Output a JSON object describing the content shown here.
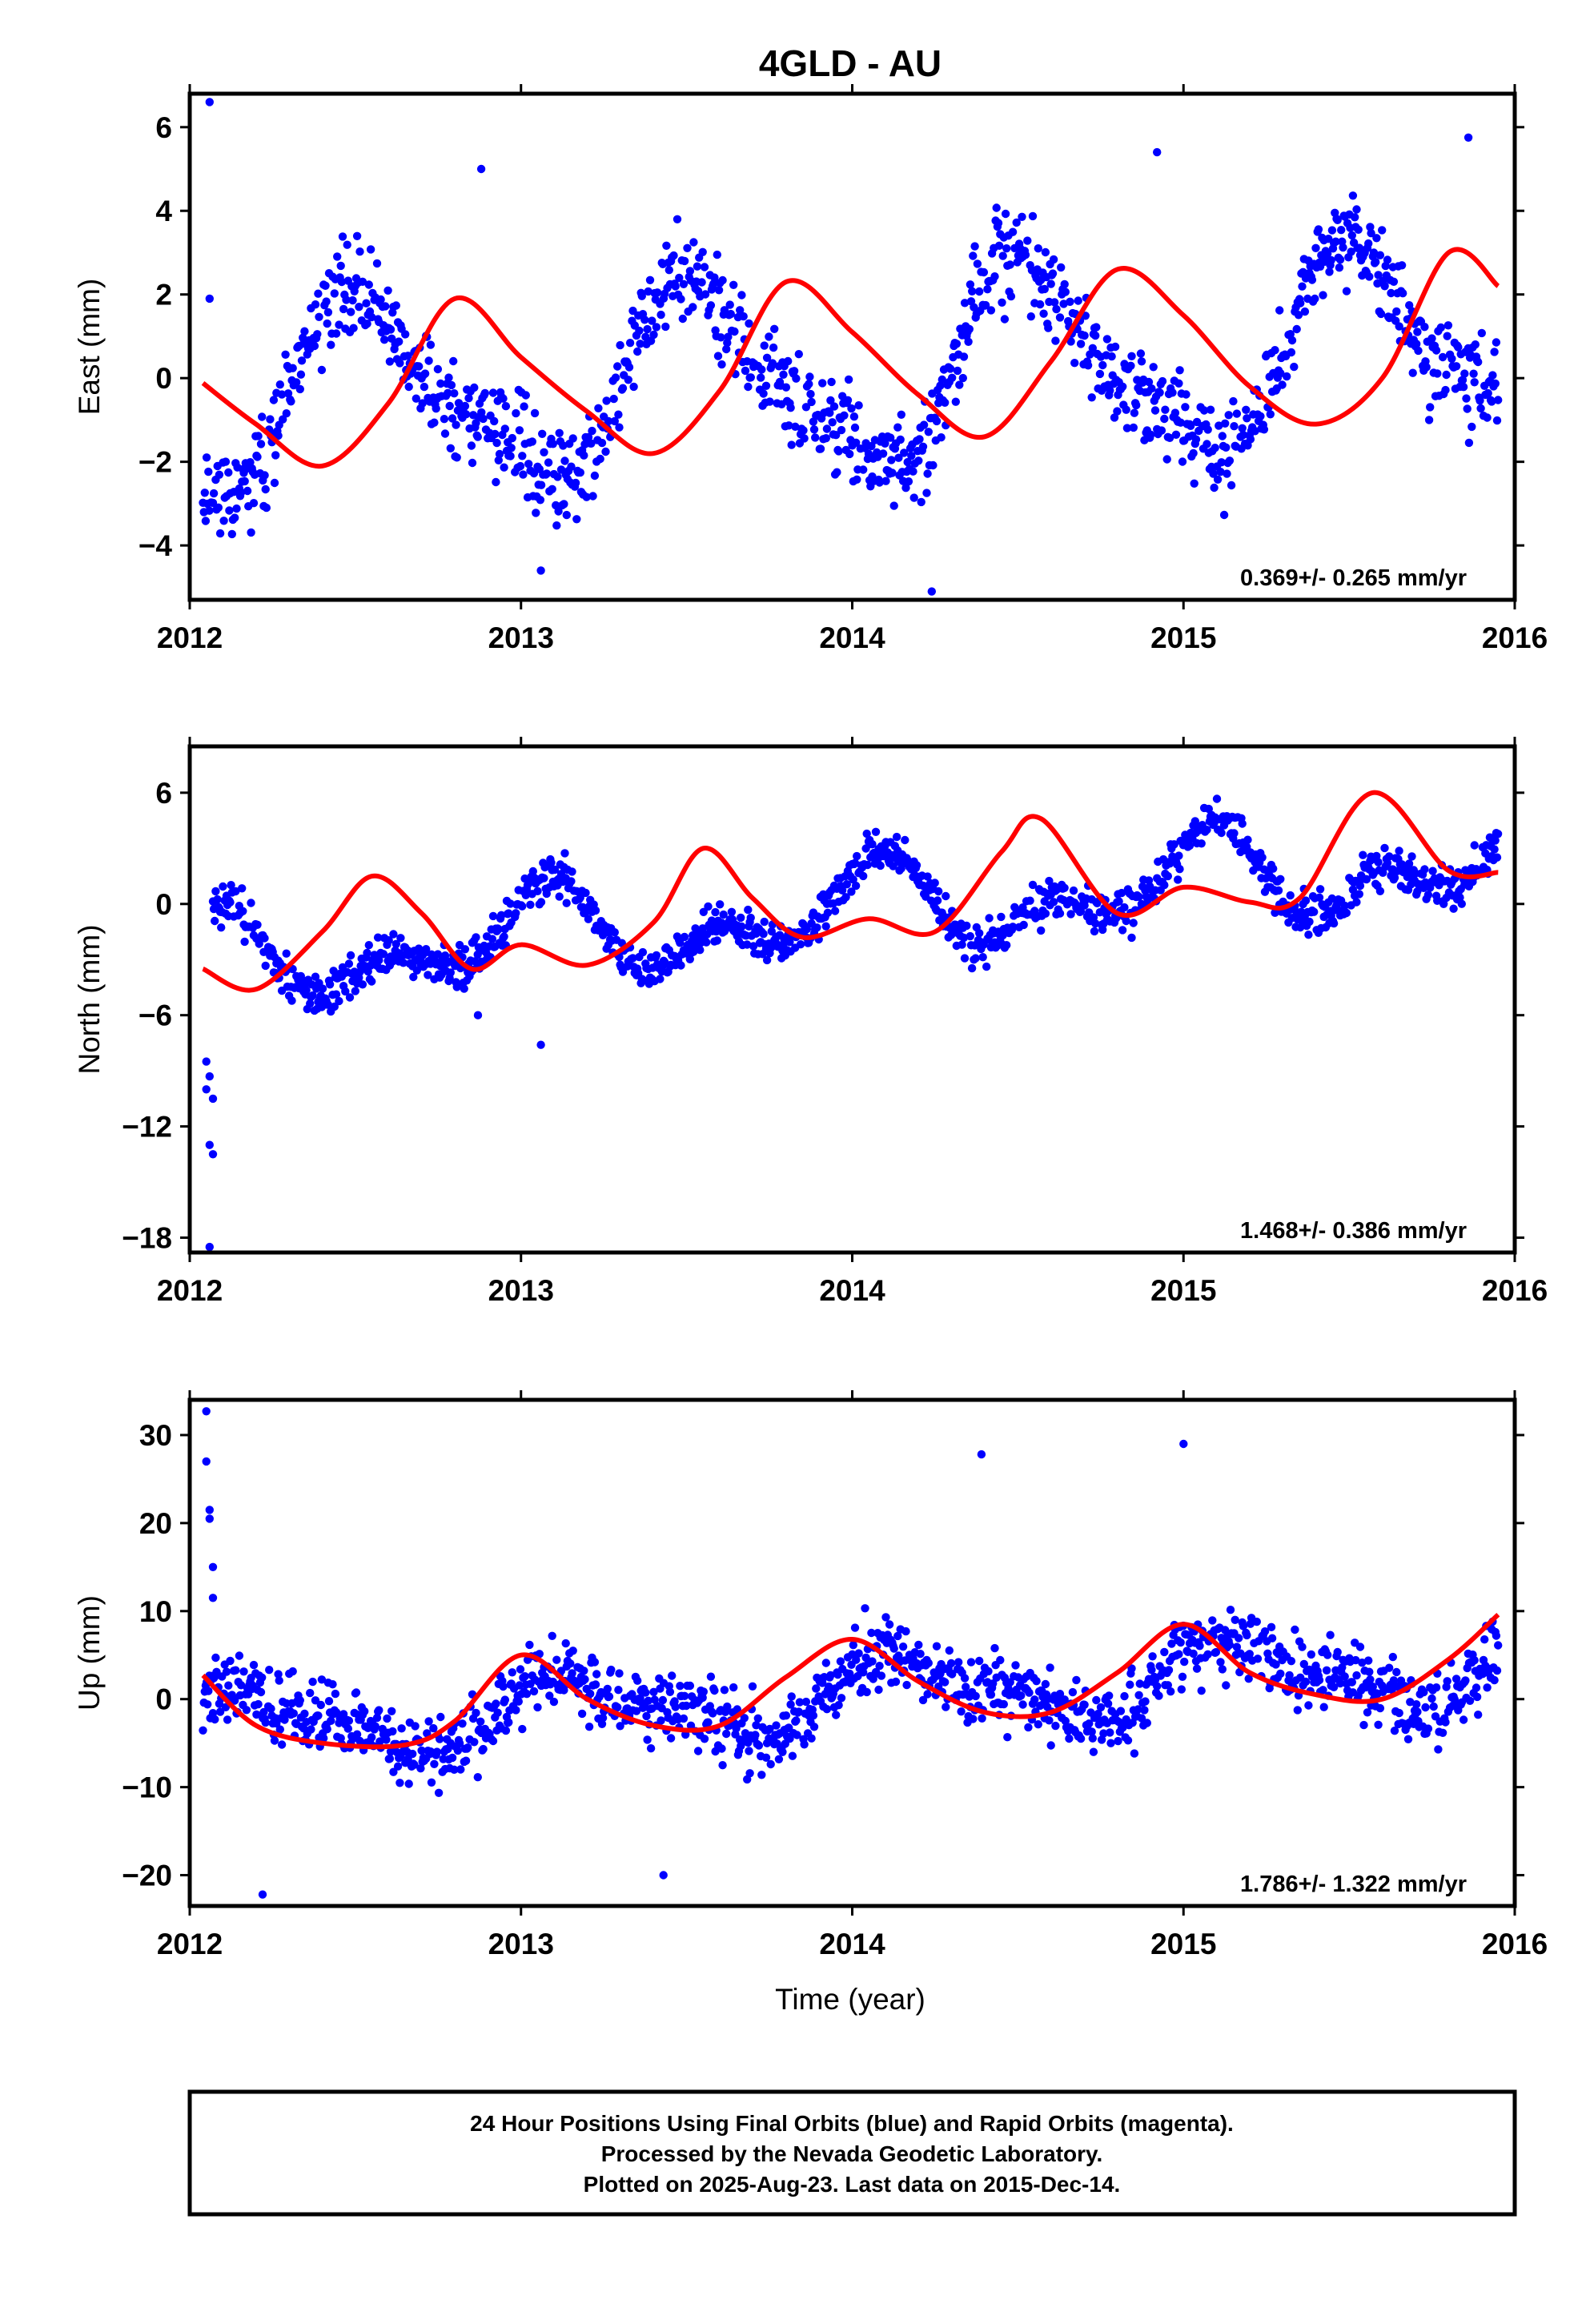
{
  "title": "4GLD - AU",
  "xlabel": "Time (year)",
  "footer": {
    "line1": "24 Hour Positions Using Final Orbits (blue) and Rapid Orbits (magenta).",
    "line2": "Processed by the Nevada Geodetic Laboratory.",
    "line3": "Plotted on 2025-Aug-23. Last data on 2015-Dec-14."
  },
  "colors": {
    "points": "#0000ff",
    "fit": "#ff0000",
    "frame": "#000000"
  },
  "chart_data": [
    {
      "type": "scatter",
      "component": "east",
      "ylabel": "East (mm)",
      "rate_text": "0.369+/- 0.265 mm/yr",
      "xlim": [
        2012.0,
        2016.0
      ],
      "ylim": [
        -5.3,
        6.8
      ],
      "xticks": [
        2012,
        2013,
        2014,
        2015,
        2016
      ],
      "xtick_labels": [
        "2012",
        "2013",
        "2014",
        "2015",
        "2016"
      ],
      "yticks": [
        -4,
        -2,
        0,
        2,
        4,
        6
      ],
      "ytick_labels": [
        "−4",
        "−2",
        "0",
        "2",
        "4",
        "6"
      ],
      "data_range": [
        2012.04,
        2015.95
      ],
      "model": {
        "amp1": 2.15,
        "phase1": 4.5,
        "amp2": 0.7,
        "phase2": 2.2,
        "trend": 0.369,
        "ref_year": 2014.0,
        "offset": 0.1
      },
      "scatter_sd": 1.0,
      "seed": 11,
      "outliers": [
        [
          2012.06,
          6.6
        ],
        [
          2012.06,
          1.9
        ],
        [
          2012.88,
          5.0
        ],
        [
          2013.06,
          -4.6
        ],
        [
          2014.24,
          -5.1
        ],
        [
          2014.92,
          5.4
        ],
        [
          2015.86,
          5.75
        ]
      ],
      "fit": [
        [
          2012.04,
          -0.12
        ],
        [
          2012.2,
          -1.1
        ],
        [
          2012.4,
          -2.1
        ],
        [
          2012.6,
          -0.6
        ],
        [
          2012.8,
          1.9
        ],
        [
          2013.0,
          0.5
        ],
        [
          2013.2,
          -0.8
        ],
        [
          2013.4,
          -1.8
        ],
        [
          2013.6,
          -0.3
        ],
        [
          2013.8,
          2.3
        ],
        [
          2014.0,
          1.1
        ],
        [
          2014.2,
          -0.4
        ],
        [
          2014.4,
          -1.4
        ],
        [
          2014.6,
          0.4
        ],
        [
          2014.8,
          2.6
        ],
        [
          2015.0,
          1.5
        ],
        [
          2015.2,
          -0.2
        ],
        [
          2015.4,
          -1.1
        ],
        [
          2015.6,
          0.0
        ],
        [
          2015.8,
          3.0
        ],
        [
          2015.95,
          2.2
        ]
      ]
    },
    {
      "type": "scatter",
      "component": "north",
      "ylabel": "North (mm)",
      "rate_text": "1.468+/- 0.386 mm/yr",
      "xlim": [
        2012.0,
        2016.0
      ],
      "ylim": [
        -18.8,
        8.5
      ],
      "xticks": [
        2012,
        2013,
        2014,
        2015,
        2016
      ],
      "xtick_labels": [
        "2012",
        "2013",
        "2014",
        "2015",
        "2016"
      ],
      "yticks": [
        -18,
        -12,
        -6,
        0,
        6
      ],
      "ytick_labels": [
        "−18",
        "−12",
        "−6",
        "0",
        "6"
      ],
      "data_range": [
        2012.07,
        2015.95
      ],
      "model": {
        "amp1": 1.8,
        "phase1": 1.2,
        "amp2": 1.5,
        "phase2": 0.3,
        "trend": 1.468,
        "ref_year": 2014.0,
        "offset": -0.4
      },
      "scatter_sd": 1.0,
      "seed": 23,
      "outliers": [
        [
          2012.05,
          -8.5
        ],
        [
          2012.06,
          -9.3
        ],
        [
          2012.05,
          -10.0
        ],
        [
          2012.07,
          -10.5
        ],
        [
          2012.06,
          -13.0
        ],
        [
          2012.07,
          -13.5
        ],
        [
          2012.06,
          -18.5
        ],
        [
          2012.87,
          -6.0
        ],
        [
          2013.06,
          -7.6
        ]
      ],
      "fit": [
        [
          2012.04,
          -3.5
        ],
        [
          2012.2,
          -4.6
        ],
        [
          2012.4,
          -1.5
        ],
        [
          2012.55,
          1.5
        ],
        [
          2012.7,
          -0.5
        ],
        [
          2012.85,
          -3.5
        ],
        [
          2013.0,
          -2.2
        ],
        [
          2013.2,
          -3.3
        ],
        [
          2013.4,
          -1.0
        ],
        [
          2013.55,
          3.0
        ],
        [
          2013.7,
          0.3
        ],
        [
          2013.85,
          -1.8
        ],
        [
          2014.05,
          -0.8
        ],
        [
          2014.25,
          -1.5
        ],
        [
          2014.45,
          2.8
        ],
        [
          2014.57,
          4.6
        ],
        [
          2014.8,
          -0.5
        ],
        [
          2015.0,
          0.9
        ],
        [
          2015.2,
          0.1
        ],
        [
          2015.35,
          0.3
        ],
        [
          2015.57,
          6.0
        ],
        [
          2015.8,
          1.8
        ],
        [
          2015.95,
          1.7
        ]
      ]
    },
    {
      "type": "scatter",
      "component": "up",
      "ylabel": "Up (mm)",
      "rate_text": "1.786+/- 1.322 mm/yr",
      "xlim": [
        2012.0,
        2016.0
      ],
      "ylim": [
        -23.5,
        34.0
      ],
      "xticks": [
        2012,
        2013,
        2014,
        2015,
        2016
      ],
      "xtick_labels": [
        "2012",
        "2013",
        "2014",
        "2015",
        "2016"
      ],
      "yticks": [
        -20,
        -10,
        0,
        10,
        20,
        30
      ],
      "ytick_labels": [
        "−20",
        "−10",
        "0",
        "10",
        "20",
        "30"
      ],
      "data_range": [
        2012.04,
        2015.95
      ],
      "model": {
        "amp1": 3.5,
        "phase1": 0.5,
        "amp2": 1.5,
        "phase2": 1.0,
        "trend": 1.786,
        "ref_year": 2014.0,
        "offset": 0.4
      },
      "scatter_sd": 3.6,
      "seed": 37,
      "outliers": [
        [
          2012.05,
          32.7
        ],
        [
          2012.05,
          27.0
        ],
        [
          2012.06,
          21.5
        ],
        [
          2012.06,
          20.5
        ],
        [
          2012.07,
          15.0
        ],
        [
          2012.07,
          11.5
        ],
        [
          2012.22,
          -22.2
        ],
        [
          2014.39,
          27.8
        ],
        [
          2015.0,
          29.0
        ],
        [
          2013.43,
          -20.0
        ]
      ],
      "fit": [
        [
          2012.04,
          2.7
        ],
        [
          2012.2,
          -3.0
        ],
        [
          2012.4,
          -5.0
        ],
        [
          2012.65,
          -5.2
        ],
        [
          2012.8,
          -2.5
        ],
        [
          2013.0,
          5.0
        ],
        [
          2013.2,
          0.0
        ],
        [
          2013.4,
          -3.0
        ],
        [
          2013.6,
          -3.0
        ],
        [
          2013.8,
          2.5
        ],
        [
          2014.0,
          6.8
        ],
        [
          2014.2,
          2.0
        ],
        [
          2014.4,
          -1.5
        ],
        [
          2014.6,
          -1.5
        ],
        [
          2014.8,
          3.0
        ],
        [
          2015.0,
          8.5
        ],
        [
          2015.2,
          3.0
        ],
        [
          2015.4,
          0.5
        ],
        [
          2015.6,
          0.0
        ],
        [
          2015.8,
          4.5
        ],
        [
          2015.95,
          9.6
        ]
      ]
    }
  ]
}
